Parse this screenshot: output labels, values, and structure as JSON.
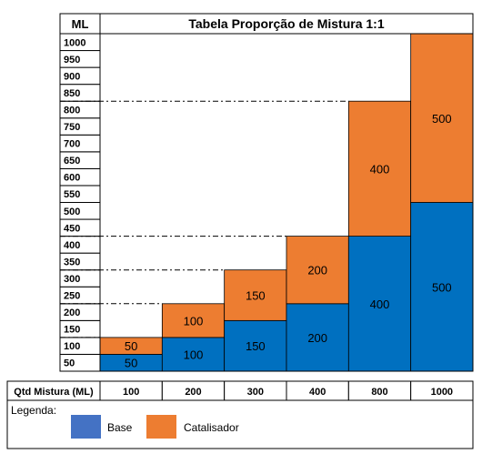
{
  "chart_data": {
    "type": "bar",
    "title": "Tabela Proporção de Mistura 1:1",
    "ylabel": "ML",
    "xlabel": "Qtd Mistura (ML)",
    "stacked": true,
    "categories": [
      "100",
      "200",
      "300",
      "400",
      "800",
      "1000"
    ],
    "series": [
      {
        "name": "Base",
        "color": "#0070C0",
        "values": [
          50,
          100,
          150,
          200,
          400,
          500
        ]
      },
      {
        "name": "Catalisador",
        "color": "#ED7D31",
        "values": [
          50,
          100,
          150,
          200,
          400,
          500
        ]
      }
    ],
    "data_labels": [
      {
        "base": "50",
        "catalisador": "50"
      },
      {
        "base": "100",
        "catalisador": "100"
      },
      {
        "base": "150",
        "catalisador": "150"
      },
      {
        "base": "200",
        "catalisador": "200"
      },
      {
        "base": "400",
        "catalisador": "400"
      },
      {
        "base": "500",
        "catalisador": "500"
      }
    ],
    "ylim": [
      0,
      1000
    ],
    "yticks": [
      "50",
      "100",
      "150",
      "200",
      "250",
      "300",
      "350",
      "400",
      "450",
      "500",
      "550",
      "600",
      "650",
      "700",
      "750",
      "800",
      "850",
      "900",
      "950",
      "1000"
    ],
    "reference_lines": [
      100,
      200,
      300,
      400,
      800
    ],
    "legend": {
      "title": "Legenda:",
      "position": "bottom",
      "items": [
        {
          "label": "Base",
          "color": "#0070C0"
        },
        {
          "label": "Catalisador",
          "color": "#ED7D31"
        }
      ]
    }
  }
}
